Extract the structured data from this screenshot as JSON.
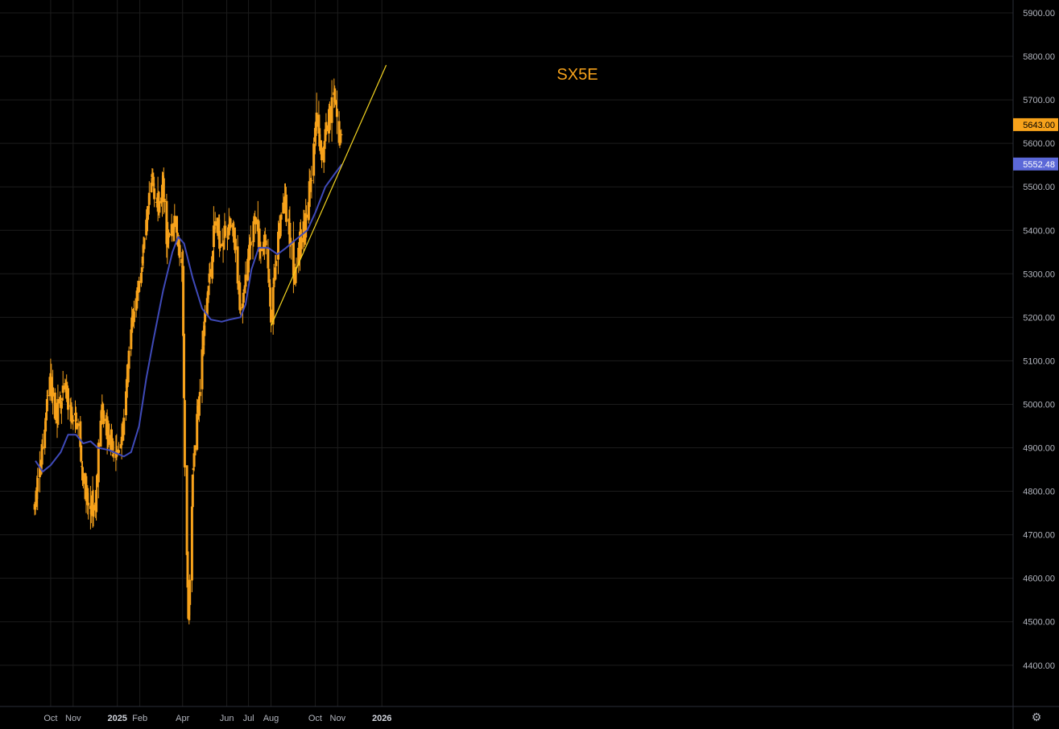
{
  "chart_data": {
    "type": "candlestick",
    "title": "SX5E",
    "y_range": [
      4300,
      5900
    ],
    "y_ticks": [
      "5900.00",
      "5800.00",
      "5700.00",
      "5600.00",
      "5500.00",
      "5400.00",
      "5300.00",
      "5200.00",
      "5100.00",
      "5000.00",
      "4900.00",
      "4800.00",
      "4700.00",
      "4600.00",
      "4500.00",
      "4400.00"
    ],
    "x_labels": [
      {
        "label": "Oct",
        "date": "2024-10-01"
      },
      {
        "label": "Nov",
        "date": "2024-11-01"
      },
      {
        "label": "2025",
        "date": "2025-01-01",
        "bold": true
      },
      {
        "label": "Feb",
        "date": "2025-02-01"
      },
      {
        "label": "Apr",
        "date": "2025-04-01"
      },
      {
        "label": "Jun",
        "date": "2025-06-01"
      },
      {
        "label": "Jul",
        "date": "2025-07-01"
      },
      {
        "label": "Aug",
        "date": "2025-08-01"
      },
      {
        "label": "Oct",
        "date": "2025-10-01"
      },
      {
        "label": "Nov",
        "date": "2025-11-01"
      },
      {
        "label": "2026",
        "date": "2026-01-01",
        "bold": true
      }
    ],
    "price_path": [
      [
        "2024-09-09",
        4760
      ],
      [
        "2024-09-20",
        4900
      ],
      [
        "2024-09-30",
        5060
      ],
      [
        "2024-10-07",
        4980
      ],
      [
        "2024-10-15",
        5000
      ],
      [
        "2024-10-22",
        5030
      ],
      [
        "2024-10-31",
        4960
      ],
      [
        "2024-11-08",
        4950
      ],
      [
        "2024-11-15",
        4820
      ],
      [
        "2024-11-22",
        4760
      ],
      [
        "2024-12-02",
        4770
      ],
      [
        "2024-12-09",
        4980
      ],
      [
        "2024-12-16",
        4960
      ],
      [
        "2024-12-23",
        4900
      ],
      [
        "2024-12-31",
        4880
      ],
      [
        "2025-01-10",
        4950
      ],
      [
        "2025-01-20",
        5170
      ],
      [
        "2025-01-31",
        5280
      ],
      [
        "2025-02-10",
        5400
      ],
      [
        "2025-02-18",
        5520
      ],
      [
        "2025-02-27",
        5450
      ],
      [
        "2025-03-05",
        5500
      ],
      [
        "2025-03-11",
        5370
      ],
      [
        "2025-03-20",
        5420
      ],
      [
        "2025-03-25",
        5380
      ],
      [
        "2025-04-01",
        5290
      ],
      [
        "2025-04-04",
        4880
      ],
      [
        "2025-04-09",
        4500
      ],
      [
        "2025-04-15",
        4850
      ],
      [
        "2025-04-24",
        5030
      ],
      [
        "2025-05-02",
        5200
      ],
      [
        "2025-05-09",
        5300
      ],
      [
        "2025-05-16",
        5420
      ],
      [
        "2025-05-23",
        5380
      ],
      [
        "2025-06-03",
        5400
      ],
      [
        "2025-06-10",
        5390
      ],
      [
        "2025-06-20",
        5230
      ],
      [
        "2025-06-27",
        5290
      ],
      [
        "2025-07-04",
        5360
      ],
      [
        "2025-07-10",
        5440
      ],
      [
        "2025-07-18",
        5350
      ],
      [
        "2025-07-25",
        5380
      ],
      [
        "2025-08-01",
        5200
      ],
      [
        "2025-08-08",
        5320
      ],
      [
        "2025-08-18",
        5480
      ],
      [
        "2025-08-25",
        5420
      ],
      [
        "2025-09-02",
        5300
      ],
      [
        "2025-09-12",
        5380
      ],
      [
        "2025-09-19",
        5430
      ],
      [
        "2025-09-26",
        5520
      ],
      [
        "2025-10-03",
        5650
      ],
      [
        "2025-10-10",
        5570
      ],
      [
        "2025-10-16",
        5640
      ],
      [
        "2025-10-24",
        5690
      ],
      [
        "2025-10-30",
        5700
      ],
      [
        "2025-11-04",
        5590
      ],
      [
        "2025-11-06",
        5643
      ]
    ],
    "moving_average": [
      [
        "2024-09-10",
        4870
      ],
      [
        "2024-09-20",
        4845
      ],
      [
        "2024-10-01",
        4860
      ],
      [
        "2024-10-15",
        4890
      ],
      [
        "2024-10-25",
        4930
      ],
      [
        "2024-11-05",
        4930
      ],
      [
        "2024-11-15",
        4910
      ],
      [
        "2024-11-25",
        4915
      ],
      [
        "2024-12-05",
        4900
      ],
      [
        "2024-12-20",
        4895
      ],
      [
        "2025-01-10",
        4880
      ],
      [
        "2025-01-20",
        4890
      ],
      [
        "2025-01-31",
        4950
      ],
      [
        "2025-02-10",
        5060
      ],
      [
        "2025-02-20",
        5150
      ],
      [
        "2025-03-05",
        5260
      ],
      [
        "2025-03-18",
        5350
      ],
      [
        "2025-03-26",
        5385
      ],
      [
        "2025-04-03",
        5370
      ],
      [
        "2025-04-15",
        5290
      ],
      [
        "2025-04-28",
        5220
      ],
      [
        "2025-05-10",
        5195
      ],
      [
        "2025-05-25",
        5190
      ],
      [
        "2025-06-05",
        5195
      ],
      [
        "2025-06-20",
        5200
      ],
      [
        "2025-06-27",
        5230
      ],
      [
        "2025-07-05",
        5310
      ],
      [
        "2025-07-15",
        5360
      ],
      [
        "2025-07-28",
        5360
      ],
      [
        "2025-08-10",
        5345
      ],
      [
        "2025-08-22",
        5360
      ],
      [
        "2025-09-05",
        5380
      ],
      [
        "2025-09-20",
        5400
      ],
      [
        "2025-10-01",
        5440
      ],
      [
        "2025-10-15",
        5500
      ],
      [
        "2025-10-28",
        5530
      ],
      [
        "2025-11-07",
        5552
      ]
    ],
    "trendline": {
      "start": [
        "2025-08-01",
        5180
      ],
      "end": [
        "2026-01-07",
        5780
      ]
    },
    "last_price": "5643.00",
    "ma_value": "5552.48",
    "grid": true,
    "colors": {
      "candle": "#f7a21b",
      "ma": "#3f4ab9",
      "trendline": "#f5d520",
      "grid": "#1c1c1c",
      "background": "#000000",
      "price_badge": "#f7a21b",
      "ma_badge": "#5b68d8"
    }
  },
  "settings_icon": "gear-icon"
}
